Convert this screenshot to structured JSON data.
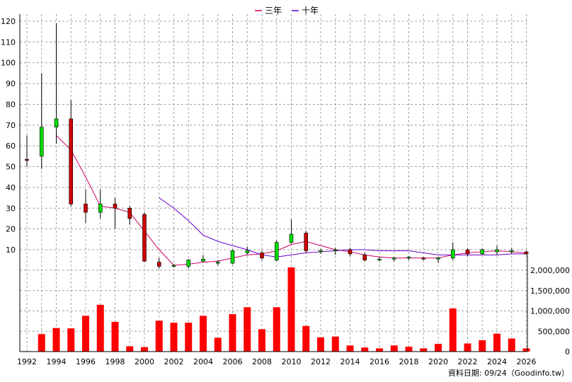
{
  "chart_data": {
    "type": "candlestick-with-volume",
    "legend": {
      "placement": "top-center",
      "items": [
        {
          "name": "三年",
          "color": "#cc0066"
        },
        {
          "name": "十年",
          "color": "#6600cc"
        }
      ]
    },
    "x_ticks": [
      "1992",
      "1994",
      "1996",
      "1998",
      "2000",
      "2002",
      "2004",
      "2006",
      "2008",
      "2010",
      "2012",
      "2014",
      "2016",
      "2018",
      "2020",
      "2022",
      "2024",
      "2026"
    ],
    "price_axis": {
      "ylim": [
        0,
        120
      ],
      "ticks": [
        "10",
        "20",
        "30",
        "40",
        "50",
        "60",
        "70",
        "80",
        "90",
        "100",
        "110",
        "120"
      ],
      "grid": true
    },
    "volume_axis": {
      "ylim": [
        0,
        2000000
      ],
      "ticks": [
        "0",
        "500,000",
        "1,000,000",
        "1,500,000",
        "2,000,000"
      ],
      "grid": true
    },
    "candles": [
      {
        "year": 1992,
        "open": 53.5,
        "high": 65,
        "low": 50,
        "close": 53.5
      },
      {
        "year": 1993,
        "open": 55,
        "high": 95,
        "low": 49,
        "close": 69
      },
      {
        "year": 1994,
        "open": 69,
        "high": 119,
        "low": 61,
        "close": 73
      },
      {
        "year": 1995,
        "open": 73,
        "high": 82,
        "low": 31,
        "close": 32
      },
      {
        "year": 1996,
        "open": 32,
        "high": 39,
        "low": 23,
        "close": 28
      },
      {
        "year": 1997,
        "open": 28,
        "high": 39,
        "low": 25,
        "close": 32
      },
      {
        "year": 1998,
        "open": 32,
        "high": 35,
        "low": 20,
        "close": 30
      },
      {
        "year": 1999,
        "open": 30,
        "high": 31,
        "low": 22,
        "close": 25
      },
      {
        "year": 2000,
        "open": 27,
        "high": 28,
        "low": 4,
        "close": 4.5
      },
      {
        "year": 2001,
        "open": 4,
        "high": 6,
        "low": 1,
        "close": 2
      },
      {
        "year": 2002,
        "open": 2,
        "high": 3,
        "low": 1.5,
        "close": 2.5
      },
      {
        "year": 2003,
        "open": 2,
        "high": 5.5,
        "low": 1,
        "close": 5
      },
      {
        "year": 2004,
        "open": 4.5,
        "high": 7.5,
        "low": 4,
        "close": 5.5
      },
      {
        "year": 2005,
        "open": 3.5,
        "high": 5,
        "low": 2.5,
        "close": 4
      },
      {
        "year": 2006,
        "open": 3.5,
        "high": 10,
        "low": 3,
        "close": 9.5
      },
      {
        "year": 2007,
        "open": 8.5,
        "high": 11.5,
        "low": 7.5,
        "close": 9.5
      },
      {
        "year": 2008,
        "open": 8.5,
        "high": 9.5,
        "low": 5,
        "close": 6
      },
      {
        "year": 2009,
        "open": 5,
        "high": 14.5,
        "low": 4.5,
        "close": 13.5
      },
      {
        "year": 2010,
        "open": 13.5,
        "high": 24.5,
        "low": 13,
        "close": 17.5
      },
      {
        "year": 2011,
        "open": 18,
        "high": 19,
        "low": 8.5,
        "close": 9.5
      },
      {
        "year": 2012,
        "open": 9,
        "high": 10.5,
        "low": 8,
        "close": 9.5
      },
      {
        "year": 2013,
        "open": 9.5,
        "high": 11,
        "low": 7.5,
        "close": 10
      },
      {
        "year": 2014,
        "open": 10,
        "high": 11,
        "low": 7,
        "close": 8
      },
      {
        "year": 2015,
        "open": 7.5,
        "high": 8.5,
        "low": 4.5,
        "close": 5
      },
      {
        "year": 2016,
        "open": 5,
        "high": 6.5,
        "low": 4.5,
        "close": 5.5
      },
      {
        "year": 2017,
        "open": 5.5,
        "high": 6.5,
        "low": 4.5,
        "close": 6
      },
      {
        "year": 2018,
        "open": 6,
        "high": 7,
        "low": 5,
        "close": 6.5
      },
      {
        "year": 2019,
        "open": 6,
        "high": 6.5,
        "low": 5,
        "close": 5.5
      },
      {
        "year": 2020,
        "open": 5.5,
        "high": 6.5,
        "low": 3.5,
        "close": 6
      },
      {
        "year": 2021,
        "open": 6,
        "high": 13.5,
        "low": 5,
        "close": 10
      },
      {
        "year": 2022,
        "open": 10,
        "high": 10.5,
        "low": 7,
        "close": 8
      },
      {
        "year": 2023,
        "open": 8,
        "high": 10.5,
        "low": 7.5,
        "close": 10
      },
      {
        "year": 2024,
        "open": 9,
        "high": 12,
        "low": 7.5,
        "close": 10
      },
      {
        "year": 2025,
        "open": 9,
        "high": 11,
        "low": 8,
        "close": 9.5
      },
      {
        "year": 2026,
        "open": 9,
        "high": 9.5,
        "low": 7.5,
        "close": 8
      }
    ],
    "ma3": [
      {
        "year": 1994,
        "value": 65
      },
      {
        "year": 1995,
        "value": 58
      },
      {
        "year": 1996,
        "value": 45
      },
      {
        "year": 1997,
        "value": 31
      },
      {
        "year": 1998,
        "value": 30
      },
      {
        "year": 1999,
        "value": 28
      },
      {
        "year": 2000,
        "value": 19
      },
      {
        "year": 2001,
        "value": 10
      },
      {
        "year": 2002,
        "value": 2.5
      },
      {
        "year": 2003,
        "value": 3
      },
      {
        "year": 2004,
        "value": 4
      },
      {
        "year": 2005,
        "value": 4.5
      },
      {
        "year": 2006,
        "value": 6
      },
      {
        "year": 2007,
        "value": 7.5
      },
      {
        "year": 2008,
        "value": 8
      },
      {
        "year": 2009,
        "value": 9.5
      },
      {
        "year": 2010,
        "value": 12.5
      },
      {
        "year": 2011,
        "value": 14
      },
      {
        "year": 2012,
        "value": 12
      },
      {
        "year": 2013,
        "value": 10
      },
      {
        "year": 2014,
        "value": 9
      },
      {
        "year": 2015,
        "value": 7.5
      },
      {
        "year": 2016,
        "value": 6.5
      },
      {
        "year": 2017,
        "value": 6
      },
      {
        "year": 2018,
        "value": 6
      },
      {
        "year": 2019,
        "value": 6
      },
      {
        "year": 2020,
        "value": 6
      },
      {
        "year": 2021,
        "value": 7.5
      },
      {
        "year": 2022,
        "value": 8.5
      },
      {
        "year": 2023,
        "value": 9
      },
      {
        "year": 2024,
        "value": 9.5
      },
      {
        "year": 2025,
        "value": 9
      },
      {
        "year": 2026,
        "value": 8.5
      }
    ],
    "ma10": [
      {
        "year": 2001,
        "value": 35
      },
      {
        "year": 2002,
        "value": 30
      },
      {
        "year": 2003,
        "value": 24
      },
      {
        "year": 2004,
        "value": 17
      },
      {
        "year": 2005,
        "value": 14
      },
      {
        "year": 2006,
        "value": 12
      },
      {
        "year": 2007,
        "value": 10
      },
      {
        "year": 2008,
        "value": 7.5
      },
      {
        "year": 2009,
        "value": 6.5
      },
      {
        "year": 2010,
        "value": 7.5
      },
      {
        "year": 2011,
        "value": 8.5
      },
      {
        "year": 2012,
        "value": 9
      },
      {
        "year": 2013,
        "value": 9.5
      },
      {
        "year": 2014,
        "value": 10
      },
      {
        "year": 2015,
        "value": 10
      },
      {
        "year": 2016,
        "value": 9.5
      },
      {
        "year": 2017,
        "value": 9.5
      },
      {
        "year": 2018,
        "value": 9.5
      },
      {
        "year": 2019,
        "value": 8.5
      },
      {
        "year": 2020,
        "value": 7.5
      },
      {
        "year": 2021,
        "value": 7.5
      },
      {
        "year": 2022,
        "value": 7.5
      },
      {
        "year": 2023,
        "value": 7.5
      },
      {
        "year": 2024,
        "value": 7.5
      },
      {
        "year": 2025,
        "value": 8
      },
      {
        "year": 2026,
        "value": 8
      }
    ],
    "volume": [
      {
        "year": 1992,
        "value": 10000
      },
      {
        "year": 1993,
        "value": 430000
      },
      {
        "year": 1994,
        "value": 580000
      },
      {
        "year": 1995,
        "value": 570000
      },
      {
        "year": 1996,
        "value": 880000
      },
      {
        "year": 1997,
        "value": 1150000
      },
      {
        "year": 1998,
        "value": 730000
      },
      {
        "year": 1999,
        "value": 130000
      },
      {
        "year": 2000,
        "value": 110000
      },
      {
        "year": 2001,
        "value": 760000
      },
      {
        "year": 2002,
        "value": 710000
      },
      {
        "year": 2003,
        "value": 710000
      },
      {
        "year": 2004,
        "value": 880000
      },
      {
        "year": 2005,
        "value": 340000
      },
      {
        "year": 2006,
        "value": 920000
      },
      {
        "year": 2007,
        "value": 1090000
      },
      {
        "year": 2008,
        "value": 550000
      },
      {
        "year": 2009,
        "value": 1090000
      },
      {
        "year": 2010,
        "value": 2070000
      },
      {
        "year": 2011,
        "value": 630000
      },
      {
        "year": 2012,
        "value": 350000
      },
      {
        "year": 2013,
        "value": 370000
      },
      {
        "year": 2014,
        "value": 150000
      },
      {
        "year": 2015,
        "value": 100000
      },
      {
        "year": 2016,
        "value": 80000
      },
      {
        "year": 2017,
        "value": 150000
      },
      {
        "year": 2018,
        "value": 120000
      },
      {
        "year": 2019,
        "value": 80000
      },
      {
        "year": 2020,
        "value": 190000
      },
      {
        "year": 2021,
        "value": 1060000
      },
      {
        "year": 2022,
        "value": 200000
      },
      {
        "year": 2023,
        "value": 280000
      },
      {
        "year": 2024,
        "value": 440000
      },
      {
        "year": 2025,
        "value": 320000
      },
      {
        "year": 2026,
        "value": 80000
      }
    ],
    "colors": {
      "up": "#00dd00",
      "down": "#cc0000",
      "volume": "#ff0000",
      "grid": "#a0a0a0",
      "wick": "#000000"
    },
    "footer": "資料日期: 09/24（Goodinfo.tw）"
  }
}
